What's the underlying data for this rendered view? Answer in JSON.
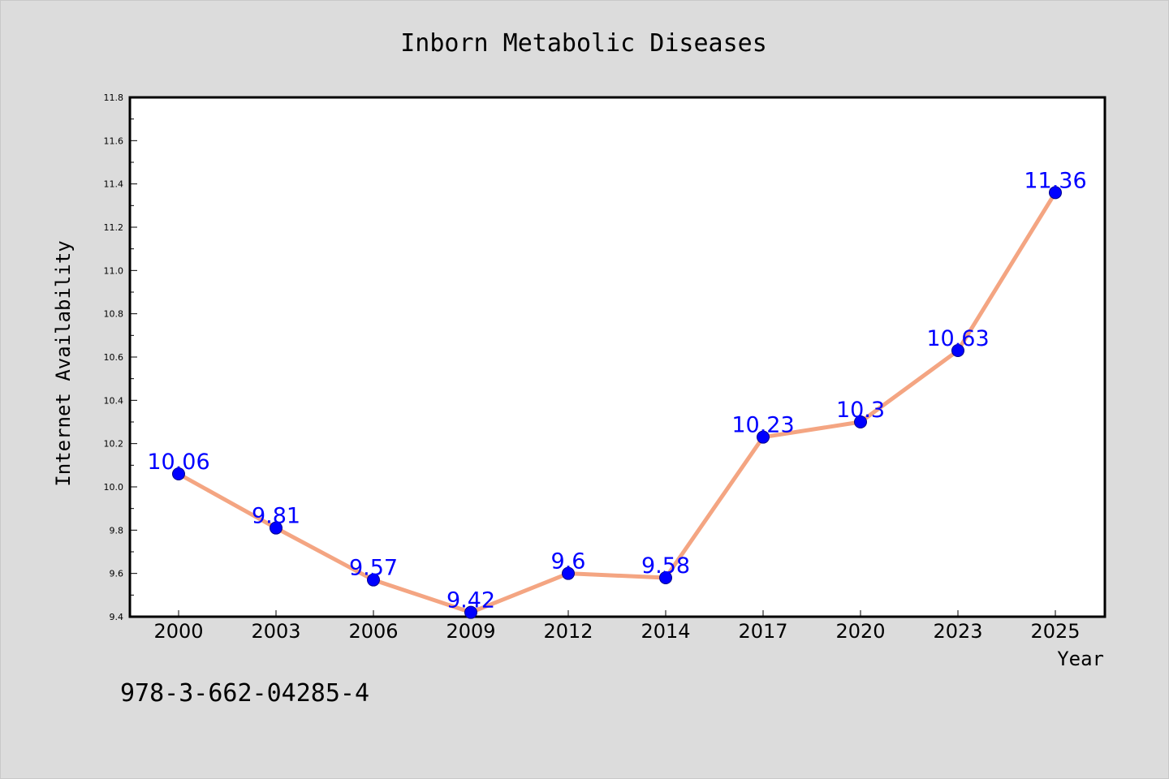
{
  "chart_data": {
    "type": "line",
    "title": "Inborn Metabolic Diseases",
    "xlabel": "Year",
    "ylabel": "Internet Availability",
    "categories": [
      "2000",
      "2003",
      "2006",
      "2009",
      "2012",
      "2014",
      "2017",
      "2020",
      "2023",
      "2025"
    ],
    "series": [
      {
        "values": [
          10.06,
          9.81,
          9.57,
          9.42,
          9.6,
          9.58,
          10.23,
          10.3,
          10.63,
          11.36
        ]
      }
    ],
    "data_labels": [
      "10.06",
      "9.81",
      "9.57",
      "9.42",
      "9.6",
      "9.58",
      "10.23",
      "10.3",
      "10.63",
      "11.36"
    ],
    "ylim": [
      9.4,
      11.8
    ],
    "yticks": [
      "9.4",
      "9.6",
      "9.8",
      "10.0",
      "10.2",
      "10.4",
      "10.6",
      "10.8",
      "11.0",
      "11.2",
      "11.4",
      "11.6",
      "11.8"
    ],
    "grid": false,
    "colors": {
      "line": "#f4a582",
      "marker_fill": "#0000ff",
      "marker_edge": "#00008b",
      "data_label": "#0000ff",
      "background": "#dcdcdc",
      "plot_background": "#ffffff"
    }
  },
  "footnote": "978-3-662-04285-4"
}
